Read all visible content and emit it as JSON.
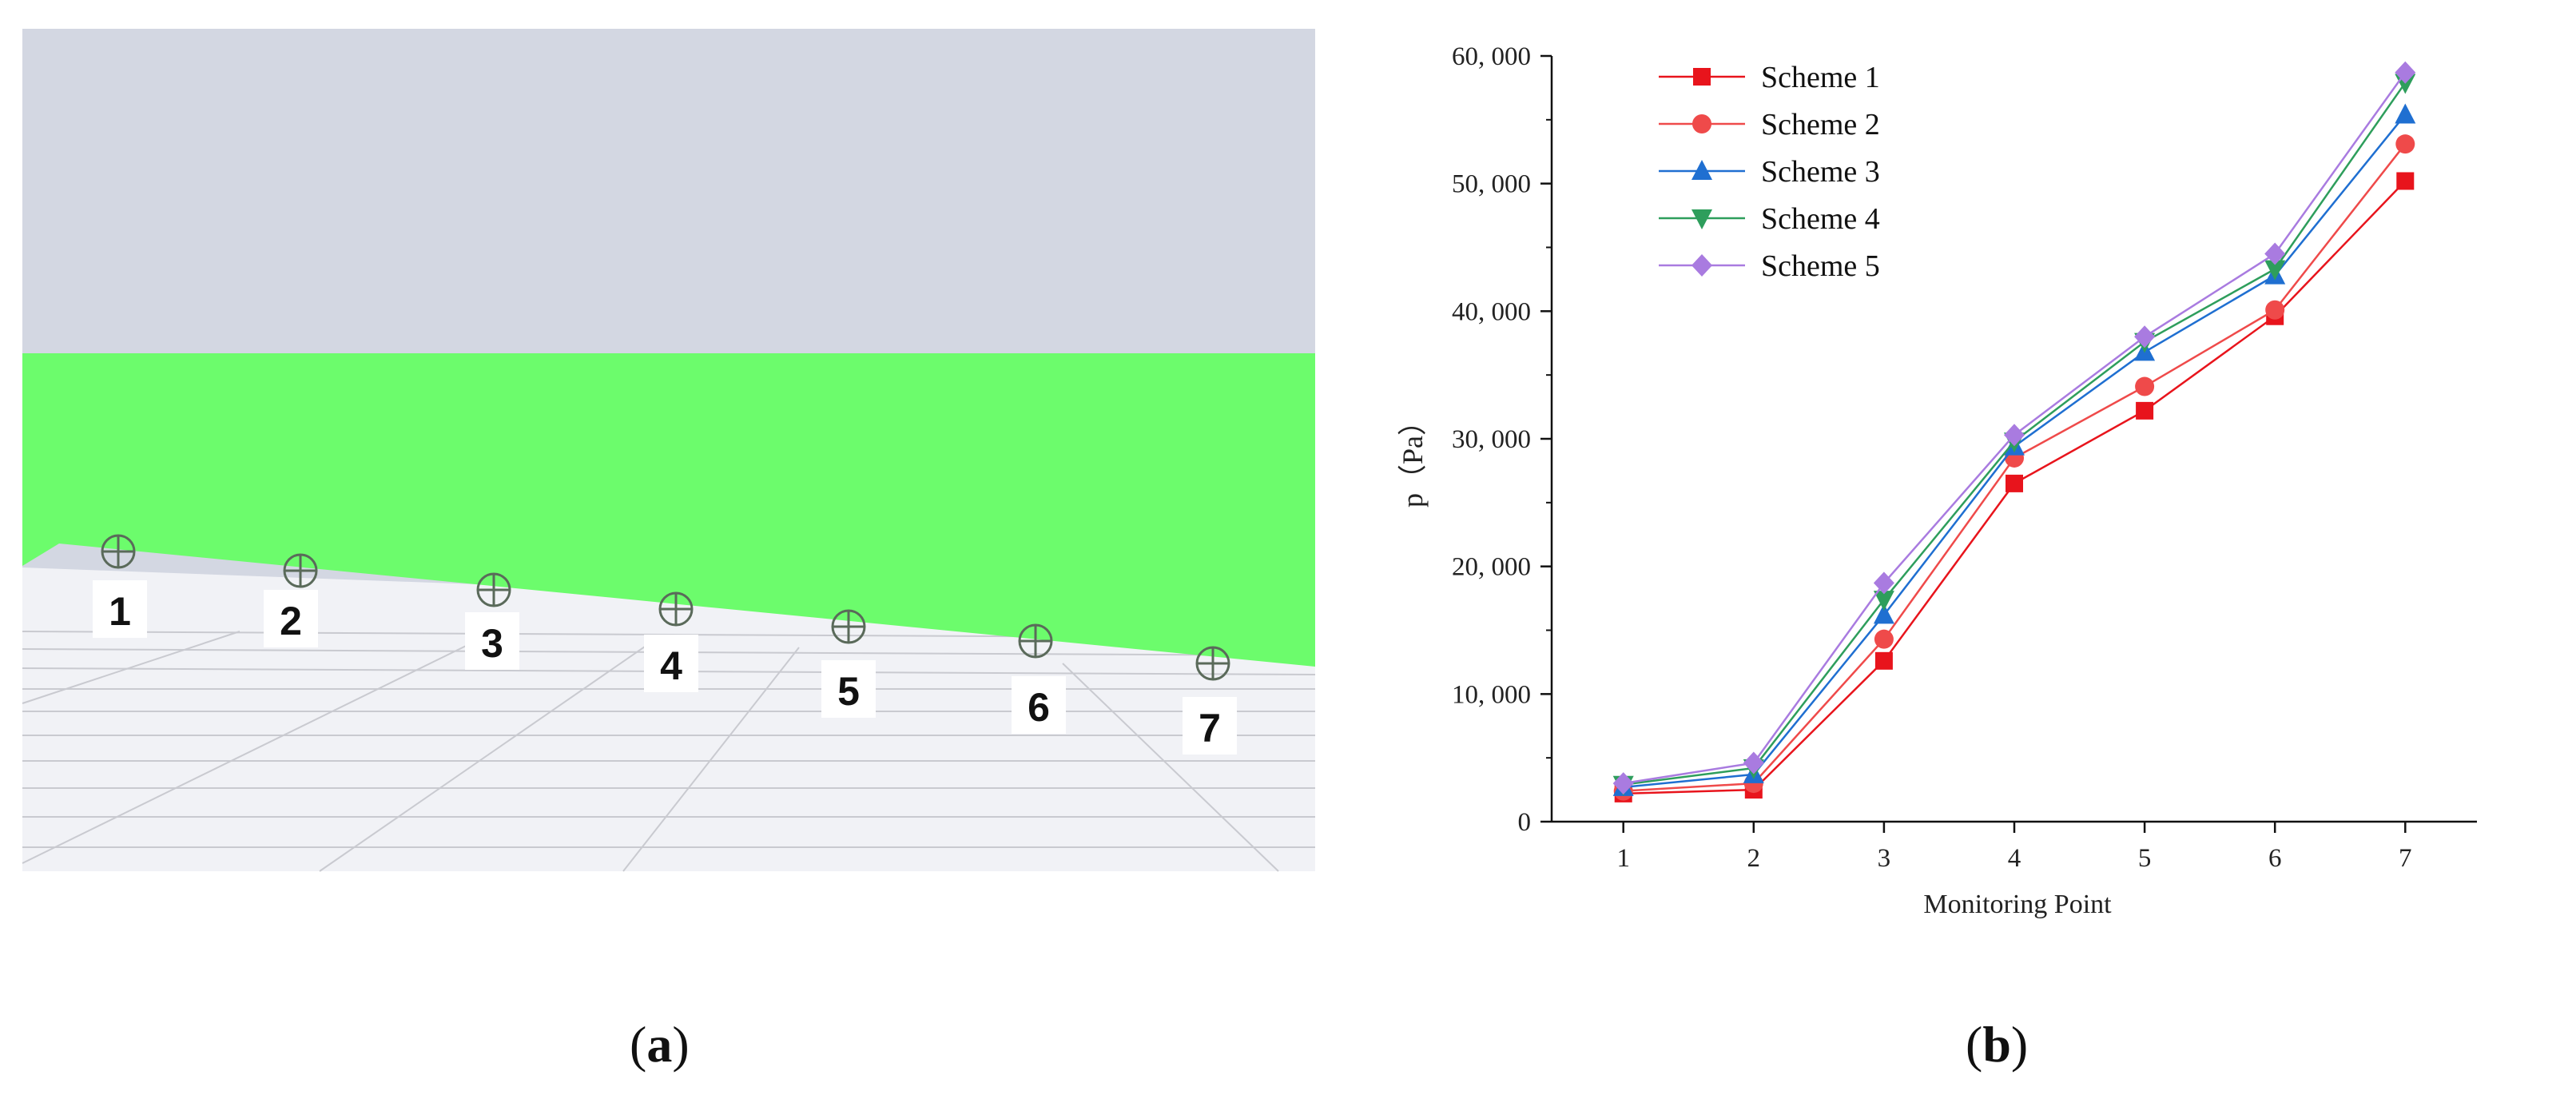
{
  "figure": {
    "panel_a": {
      "caption_letter": "a",
      "monitoring_point_labels": [
        "1",
        "2",
        "3",
        "4",
        "5",
        "6",
        "7"
      ],
      "colors": {
        "sky": "#d3d7e2",
        "surface": "#6cfc6c",
        "floor": "#f1f2f6",
        "grid": "#c9cad0"
      }
    },
    "panel_b": {
      "caption_letter": "b"
    }
  },
  "chart_data": {
    "type": "line",
    "xlabel": "Monitoring Point",
    "ylabel": "p（Pa）",
    "x": [
      1,
      2,
      3,
      4,
      5,
      6,
      7
    ],
    "x_tick_labels": [
      "1",
      "2",
      "3",
      "4",
      "5",
      "6",
      "7"
    ],
    "ylim": [
      0,
      60000
    ],
    "y_ticks": [
      0,
      10000,
      20000,
      30000,
      40000,
      50000,
      60000
    ],
    "y_tick_labels": [
      "0",
      "10, 000",
      "20, 000",
      "30, 000",
      "40, 000",
      "50, 000",
      "60, 000"
    ],
    "grid": false,
    "legend_position": "top-left",
    "series": [
      {
        "name": "Scheme 1",
        "marker": "square",
        "color": "#e8141c",
        "values": [
          2200,
          2500,
          12600,
          26500,
          32200,
          39600,
          50200
        ]
      },
      {
        "name": "Scheme 2",
        "marker": "circle",
        "color": "#ef4a4a",
        "values": [
          2400,
          3000,
          14300,
          28500,
          34100,
          40100,
          53100
        ]
      },
      {
        "name": "Scheme 3",
        "marker": "triangle-up",
        "color": "#1f6fd1",
        "values": [
          2700,
          3700,
          16200,
          29400,
          36800,
          42800,
          55400
        ]
      },
      {
        "name": "Scheme 4",
        "marker": "triangle-down",
        "color": "#2e9e5c",
        "values": [
          2900,
          4200,
          17400,
          29800,
          37600,
          43300,
          57900
        ]
      },
      {
        "name": "Scheme 5",
        "marker": "diamond",
        "color": "#a97be0",
        "values": [
          3000,
          4600,
          18700,
          30300,
          38000,
          44500,
          58700
        ]
      }
    ]
  }
}
